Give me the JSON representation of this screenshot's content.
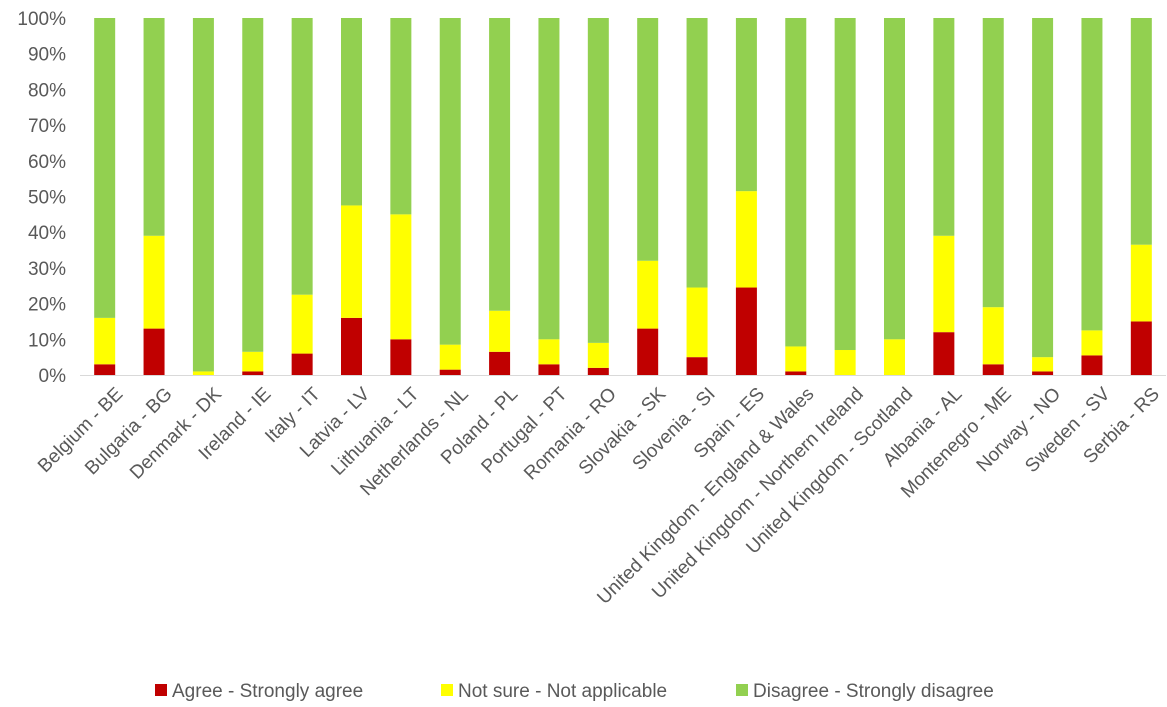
{
  "chart_data": {
    "type": "bar",
    "stacked": true,
    "percent_stacked": true,
    "title": "",
    "xlabel": "",
    "ylabel": "",
    "ylim": [
      0,
      100
    ],
    "yticks": [
      "0%",
      "10%",
      "20%",
      "30%",
      "40%",
      "50%",
      "60%",
      "70%",
      "80%",
      "90%",
      "100%"
    ],
    "grid": false,
    "legend_position": "bottom",
    "categories": [
      "Belgium - BE",
      "Bulgaria - BG",
      "Denmark - DK",
      "Ireland - IE",
      "Italy - IT",
      "Latvia - LV",
      "Lithuania - LT",
      "Netherlands - NL",
      "Poland - PL",
      "Portugal - PT",
      "Romania - RO",
      "Slovakia - SK",
      "Slovenia - SI",
      "Spain - ES",
      "United Kingdom - England & Wales",
      "United Kingdom - Northern Ireland",
      "United Kingdom - Scotland",
      "Albania - AL",
      "Montenegro - ME",
      "Norway - NO",
      "Sweden - SV",
      "Serbia - RS"
    ],
    "series": [
      {
        "name": "Agree - Strongly agree",
        "color": "#C00000",
        "values": [
          3,
          13,
          0,
          1,
          6,
          16,
          10,
          1.5,
          6.5,
          3,
          2,
          13,
          5,
          24.5,
          1,
          0,
          0,
          12,
          3,
          1,
          5.5,
          15
        ]
      },
      {
        "name": "Not sure - Not applicable",
        "color": "#FFFF00",
        "values": [
          13,
          26,
          1,
          5.5,
          16.5,
          31.5,
          35,
          7,
          11.5,
          7,
          7,
          19,
          19.5,
          27,
          7,
          7,
          10,
          27,
          16,
          4,
          7,
          21.5
        ]
      },
      {
        "name": "Disagree - Strongly disagree",
        "color": "#92D050",
        "values": [
          84,
          61,
          99,
          93.5,
          77.5,
          52.5,
          55,
          91.5,
          82,
          90,
          91,
          68,
          75.5,
          48.5,
          92,
          93,
          90,
          61,
          81,
          95,
          87.5,
          63.5
        ]
      }
    ]
  }
}
